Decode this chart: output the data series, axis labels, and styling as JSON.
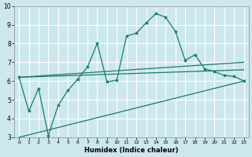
{
  "xlabel": "Humidex (Indice chaleur)",
  "bg_color": "#cce8ee",
  "grid_color": "#ffffff",
  "line_color": "#1a7a6a",
  "xlim": [
    -0.5,
    23.5
  ],
  "ylim": [
    3,
    10
  ],
  "xticks": [
    0,
    1,
    2,
    3,
    4,
    5,
    6,
    7,
    8,
    9,
    10,
    11,
    12,
    13,
    14,
    15,
    16,
    17,
    18,
    19,
    20,
    21,
    22,
    23
  ],
  "yticks": [
    3,
    4,
    5,
    6,
    7,
    8,
    9,
    10
  ],
  "line1_x": [
    0,
    1,
    2,
    3,
    4,
    5,
    6,
    7,
    8,
    9,
    10,
    11,
    12,
    13,
    14,
    15,
    16,
    17,
    18,
    19,
    20,
    21,
    22,
    23
  ],
  "line1_y": [
    6.2,
    4.4,
    5.6,
    3.1,
    4.7,
    5.5,
    6.1,
    6.75,
    8.0,
    5.95,
    6.05,
    8.4,
    8.55,
    9.1,
    9.6,
    9.4,
    8.65,
    7.1,
    7.4,
    6.65,
    6.5,
    6.3,
    6.25,
    6.0
  ],
  "line2_x": [
    0,
    23
  ],
  "line2_y": [
    3.0,
    6.0
  ],
  "line3_x": [
    0,
    23
  ],
  "line3_y": [
    6.2,
    6.6
  ],
  "line4_x": [
    0,
    23
  ],
  "line4_y": [
    6.2,
    7.0
  ]
}
